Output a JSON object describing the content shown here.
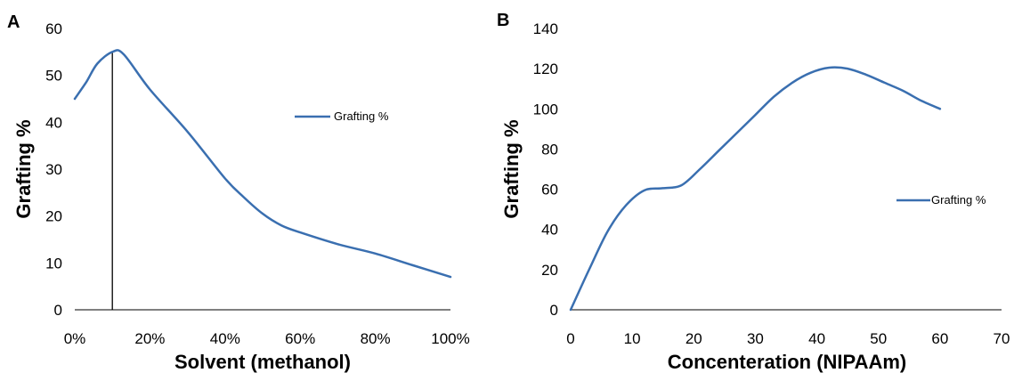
{
  "chart_data": [
    {
      "panel": "A",
      "type": "line",
      "xlabel": "Solvent (methanol)",
      "ylabel": "Grafting %",
      "xlim": [
        0,
        100
      ],
      "ylim": [
        0,
        60
      ],
      "x_ticks": [
        0,
        20,
        40,
        60,
        80,
        100
      ],
      "x_tick_labels": [
        "0%",
        "20%",
        "40%",
        "60%",
        "80%",
        "100%"
      ],
      "y_ticks": [
        0,
        10,
        20,
        30,
        40,
        50,
        60
      ],
      "y_tick_labels": [
        "0",
        "10",
        "20",
        "30",
        "40",
        "50",
        "60"
      ],
      "series": [
        {
          "name": "Grafting %",
          "x": [
            0,
            3,
            6,
            10,
            13,
            20,
            30,
            40,
            45,
            50,
            55,
            60,
            70,
            80,
            90,
            100
          ],
          "y": [
            45,
            48.5,
            52.5,
            55,
            54.5,
            47,
            38,
            28,
            24,
            20.5,
            18,
            16.5,
            14,
            12,
            9.5,
            7
          ]
        }
      ],
      "annotations": [
        {
          "type": "vertical-line",
          "x": 10,
          "y": 55
        }
      ],
      "legend_position": "right",
      "grid": false,
      "colors": {
        "series": "#3a6fb0",
        "axis": "#000000"
      }
    },
    {
      "panel": "B",
      "type": "line",
      "xlabel": "Concenteration (NIPAAm)",
      "ylabel": "Grafting %",
      "xlim": [
        0,
        70
      ],
      "ylim": [
        0,
        140
      ],
      "x_ticks": [
        0,
        10,
        20,
        30,
        40,
        50,
        60,
        70
      ],
      "x_tick_labels": [
        "0",
        "10",
        "20",
        "30",
        "40",
        "50",
        "60",
        "70"
      ],
      "y_ticks": [
        0,
        20,
        40,
        60,
        80,
        100,
        120,
        140
      ],
      "y_tick_labels": [
        "0",
        "20",
        "40",
        "60",
        "80",
        "100",
        "120",
        "140"
      ],
      "series": [
        {
          "name": "Grafting %",
          "x": [
            0,
            3,
            6,
            9,
            12,
            15,
            18,
            21,
            24,
            27,
            30,
            33,
            36,
            39,
            42,
            45,
            48,
            51,
            54,
            57,
            60
          ],
          "y": [
            0,
            20,
            39,
            52,
            59.5,
            60.5,
            62,
            70,
            79,
            88,
            97,
            106,
            113,
            118,
            120.5,
            120,
            117,
            113,
            109,
            104,
            100
          ]
        }
      ],
      "legend_position": "right",
      "grid": false,
      "colors": {
        "series": "#3a6fb0",
        "axis": "#000000"
      }
    }
  ]
}
